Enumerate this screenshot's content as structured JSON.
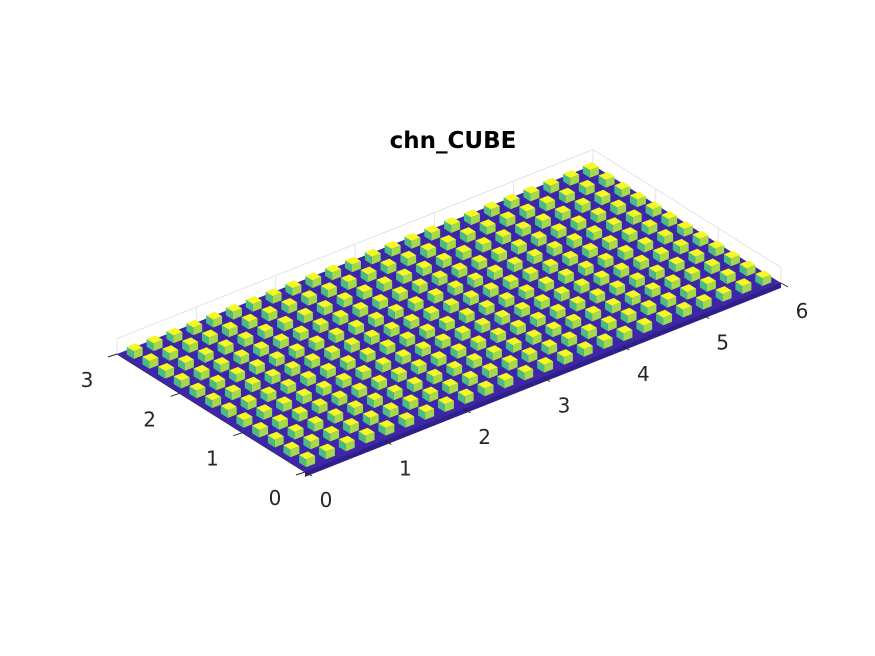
{
  "figure": {
    "background": "#ffffff"
  },
  "chart_data": {
    "type": "heatmap",
    "title": "chn_CUBE",
    "xlabel": "",
    "ylabel": "",
    "zlabel": "",
    "view": "3d-perspective",
    "xlim": [
      0,
      6
    ],
    "ylim": [
      0,
      3
    ],
    "x_ticks": [
      "0",
      "1",
      "2",
      "3",
      "4",
      "5",
      "6"
    ],
    "y_ticks": [
      "0",
      "1",
      "2",
      "3"
    ],
    "grid": true,
    "colormap": "parula",
    "colors": {
      "base": "#3e26a8",
      "cube_top": "#f5f923",
      "cube_side": "#a5d84a",
      "cube_side_dark": "#4bbb86"
    },
    "pattern": {
      "description": "regular array of small raised cubes on a flat base plate",
      "columns_along_x": 24,
      "rows_along_y": 12,
      "cube_width_fraction": 0.45
    }
  }
}
